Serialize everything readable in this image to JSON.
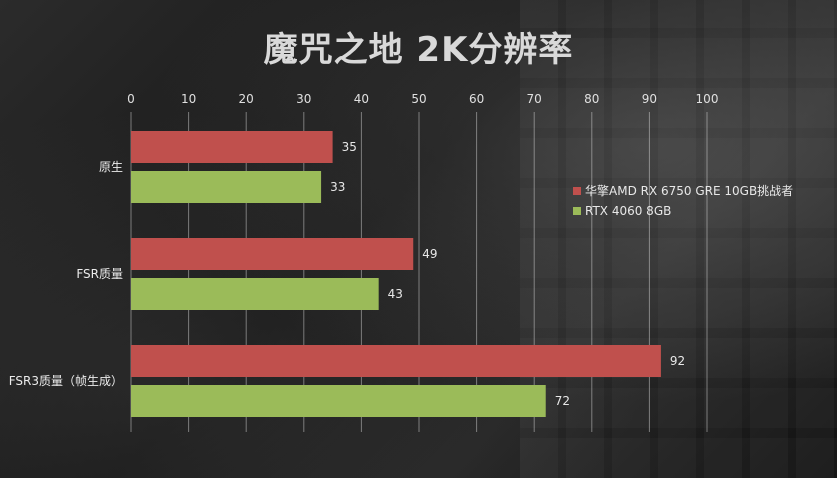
{
  "chart_data": {
    "type": "bar",
    "orientation": "horizontal",
    "title": "魔咒之地 2K分辨率",
    "categories": [
      "原生",
      "FSR质量",
      "FSR3质量（帧生成）"
    ],
    "series": [
      {
        "name": "华擎AMD RX 6750 GRE 10GB挑战者",
        "values": [
          35,
          49,
          92
        ],
        "color": "#c0504d"
      },
      {
        "name": "RTX 4060 8GB",
        "values": [
          33,
          43,
          72
        ],
        "color": "#9bbb59"
      }
    ],
    "xlim": [
      0,
      100
    ],
    "xticks": [
      0,
      10,
      20,
      30,
      40,
      50,
      60,
      70,
      80,
      90,
      100
    ],
    "xaxis_position": "top",
    "grid": true,
    "legend_position": "right",
    "data_labels": true
  }
}
